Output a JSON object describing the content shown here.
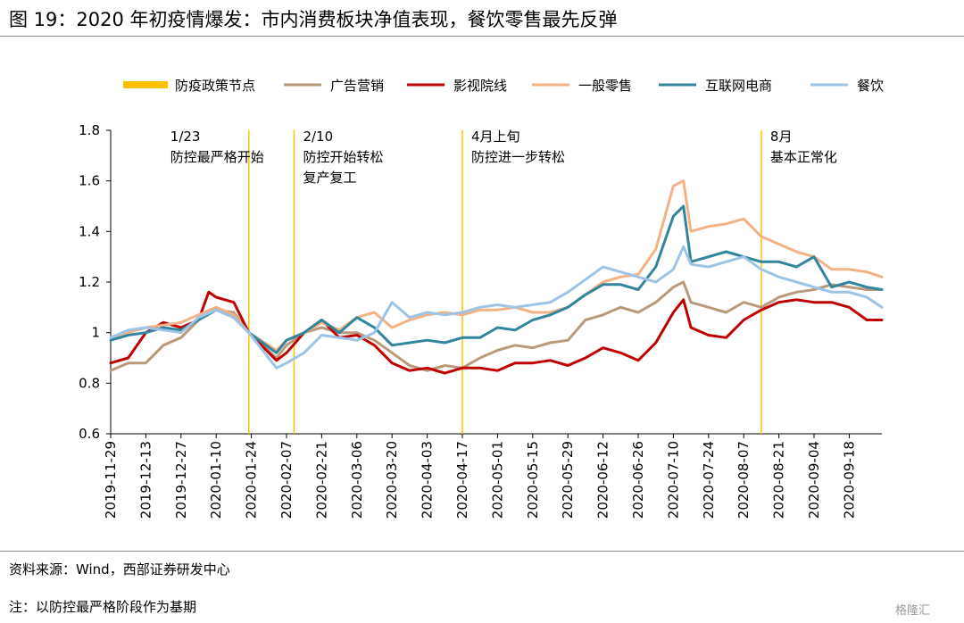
{
  "title": "图 19：2020 年初疫情爆发：市内消费板块净值表现，餐饮零售最先反弹",
  "source": "资料来源：Wind，西部证券研发中心",
  "note": "注：以防控最严格阶段作为基期",
  "watermark": "格隆汇",
  "chart_data": {
    "type": "line",
    "xlabel": "",
    "ylabel": "",
    "ylim": [
      0.6,
      1.8
    ],
    "yticks": [
      "0.6",
      "0.8",
      "1",
      "1.2",
      "1.4",
      "1.6",
      "1.8"
    ],
    "x_start": "2019-11-29",
    "x_end": "2020-10-01",
    "xticks": [
      "2019-11-29",
      "2019-12-13",
      "2019-12-27",
      "2020-01-10",
      "2020-01-24",
      "2020-02-07",
      "2020-02-21",
      "2020-03-06",
      "2020-03-20",
      "2020-04-03",
      "2020-04-17",
      "2020-05-01",
      "2020-05-15",
      "2020-05-29",
      "2020-06-12",
      "2020-06-26",
      "2020-07-10",
      "2020-07-24",
      "2020-08-07",
      "2020-08-21",
      "2020-09-04",
      "2020-09-18"
    ],
    "legend_position": "top",
    "grid": false,
    "policy_lines": {
      "name": "防疫政策节点",
      "color": "#FFC000",
      "dates": [
        "2020-01-23",
        "2020-02-10",
        "2020-04-17",
        "2020-08-14"
      ]
    },
    "annotations": [
      {
        "date": "2020-01-23",
        "lines": [
          "1/23",
          "防控最严格开始"
        ]
      },
      {
        "date": "2020-02-10",
        "lines": [
          "2/10",
          "防控开始转松",
          "复产复工"
        ]
      },
      {
        "date": "2020-04-17",
        "lines": [
          "4月上旬",
          "防控进一步转松"
        ]
      },
      {
        "date": "2020-08-14",
        "lines": [
          "8月",
          "基本正常化"
        ]
      }
    ],
    "series": [
      {
        "name": "广告营销",
        "color": "#B89A7A",
        "points": [
          [
            "2019-11-29",
            0.85
          ],
          [
            "2019-12-06",
            0.88
          ],
          [
            "2019-12-13",
            0.88
          ],
          [
            "2019-12-20",
            0.95
          ],
          [
            "2019-12-27",
            0.98
          ],
          [
            "2020-01-03",
            1.05
          ],
          [
            "2020-01-10",
            1.09
          ],
          [
            "2020-01-17",
            1.08
          ],
          [
            "2020-01-23",
            1.0
          ],
          [
            "2020-02-03",
            0.9
          ],
          [
            "2020-02-07",
            0.95
          ],
          [
            "2020-02-14",
            1.0
          ],
          [
            "2020-02-21",
            1.02
          ],
          [
            "2020-02-28",
            1.0
          ],
          [
            "2020-03-06",
            1.0
          ],
          [
            "2020-03-13",
            0.97
          ],
          [
            "2020-03-20",
            0.92
          ],
          [
            "2020-03-27",
            0.87
          ],
          [
            "2020-04-03",
            0.85
          ],
          [
            "2020-04-10",
            0.87
          ],
          [
            "2020-04-17",
            0.86
          ],
          [
            "2020-04-24",
            0.9
          ],
          [
            "2020-05-01",
            0.93
          ],
          [
            "2020-05-08",
            0.95
          ],
          [
            "2020-05-15",
            0.94
          ],
          [
            "2020-05-22",
            0.96
          ],
          [
            "2020-05-29",
            0.97
          ],
          [
            "2020-06-05",
            1.05
          ],
          [
            "2020-06-12",
            1.07
          ],
          [
            "2020-06-19",
            1.1
          ],
          [
            "2020-06-26",
            1.08
          ],
          [
            "2020-07-03",
            1.12
          ],
          [
            "2020-07-10",
            1.18
          ],
          [
            "2020-07-14",
            1.2
          ],
          [
            "2020-07-17",
            1.12
          ],
          [
            "2020-07-24",
            1.1
          ],
          [
            "2020-07-31",
            1.08
          ],
          [
            "2020-08-07",
            1.12
          ],
          [
            "2020-08-14",
            1.1
          ],
          [
            "2020-08-21",
            1.14
          ],
          [
            "2020-08-28",
            1.16
          ],
          [
            "2020-09-04",
            1.17
          ],
          [
            "2020-09-11",
            1.19
          ],
          [
            "2020-09-18",
            1.18
          ],
          [
            "2020-09-25",
            1.17
          ],
          [
            "2020-10-01",
            1.17
          ]
        ]
      },
      {
        "name": "影视院线",
        "color": "#C00000",
        "points": [
          [
            "2019-11-29",
            0.88
          ],
          [
            "2019-12-06",
            0.9
          ],
          [
            "2019-12-13",
            1.0
          ],
          [
            "2019-12-20",
            1.04
          ],
          [
            "2019-12-27",
            1.02
          ],
          [
            "2020-01-03",
            1.05
          ],
          [
            "2020-01-07",
            1.16
          ],
          [
            "2020-01-10",
            1.14
          ],
          [
            "2020-01-17",
            1.12
          ],
          [
            "2020-01-23",
            1.0
          ],
          [
            "2020-02-03",
            0.89
          ],
          [
            "2020-02-07",
            0.92
          ],
          [
            "2020-02-14",
            1.0
          ],
          [
            "2020-02-21",
            1.05
          ],
          [
            "2020-02-28",
            0.98
          ],
          [
            "2020-03-06",
            0.99
          ],
          [
            "2020-03-13",
            0.95
          ],
          [
            "2020-03-20",
            0.88
          ],
          [
            "2020-03-27",
            0.85
          ],
          [
            "2020-04-03",
            0.86
          ],
          [
            "2020-04-10",
            0.84
          ],
          [
            "2020-04-17",
            0.86
          ],
          [
            "2020-04-24",
            0.86
          ],
          [
            "2020-05-01",
            0.85
          ],
          [
            "2020-05-08",
            0.88
          ],
          [
            "2020-05-15",
            0.88
          ],
          [
            "2020-05-22",
            0.89
          ],
          [
            "2020-05-29",
            0.87
          ],
          [
            "2020-06-05",
            0.9
          ],
          [
            "2020-06-12",
            0.94
          ],
          [
            "2020-06-19",
            0.92
          ],
          [
            "2020-06-26",
            0.89
          ],
          [
            "2020-07-03",
            0.96
          ],
          [
            "2020-07-10",
            1.08
          ],
          [
            "2020-07-14",
            1.13
          ],
          [
            "2020-07-17",
            1.02
          ],
          [
            "2020-07-24",
            0.99
          ],
          [
            "2020-07-31",
            0.98
          ],
          [
            "2020-08-07",
            1.05
          ],
          [
            "2020-08-14",
            1.09
          ],
          [
            "2020-08-21",
            1.12
          ],
          [
            "2020-08-28",
            1.13
          ],
          [
            "2020-09-04",
            1.12
          ],
          [
            "2020-09-11",
            1.12
          ],
          [
            "2020-09-18",
            1.1
          ],
          [
            "2020-09-25",
            1.05
          ],
          [
            "2020-10-01",
            1.05
          ]
        ]
      },
      {
        "name": "一般零售",
        "color": "#F4B183",
        "points": [
          [
            "2019-11-29",
            0.98
          ],
          [
            "2019-12-06",
            1.0
          ],
          [
            "2019-12-13",
            1.02
          ],
          [
            "2019-12-20",
            1.03
          ],
          [
            "2019-12-27",
            1.04
          ],
          [
            "2020-01-03",
            1.07
          ],
          [
            "2020-01-10",
            1.1
          ],
          [
            "2020-01-17",
            1.07
          ],
          [
            "2020-01-23",
            1.0
          ],
          [
            "2020-02-03",
            0.93
          ],
          [
            "2020-02-07",
            0.97
          ],
          [
            "2020-02-14",
            1.0
          ],
          [
            "2020-02-21",
            1.04
          ],
          [
            "2020-02-28",
            1.01
          ],
          [
            "2020-03-06",
            1.06
          ],
          [
            "2020-03-13",
            1.08
          ],
          [
            "2020-03-20",
            1.02
          ],
          [
            "2020-03-27",
            1.05
          ],
          [
            "2020-04-03",
            1.07
          ],
          [
            "2020-04-10",
            1.08
          ],
          [
            "2020-04-17",
            1.07
          ],
          [
            "2020-04-24",
            1.09
          ],
          [
            "2020-05-01",
            1.09
          ],
          [
            "2020-05-08",
            1.1
          ],
          [
            "2020-05-15",
            1.08
          ],
          [
            "2020-05-22",
            1.08
          ],
          [
            "2020-05-29",
            1.1
          ],
          [
            "2020-06-05",
            1.15
          ],
          [
            "2020-06-12",
            1.2
          ],
          [
            "2020-06-19",
            1.22
          ],
          [
            "2020-06-26",
            1.23
          ],
          [
            "2020-07-03",
            1.33
          ],
          [
            "2020-07-10",
            1.58
          ],
          [
            "2020-07-14",
            1.6
          ],
          [
            "2020-07-17",
            1.4
          ],
          [
            "2020-07-24",
            1.42
          ],
          [
            "2020-07-31",
            1.43
          ],
          [
            "2020-08-07",
            1.45
          ],
          [
            "2020-08-14",
            1.38
          ],
          [
            "2020-08-21",
            1.35
          ],
          [
            "2020-08-28",
            1.32
          ],
          [
            "2020-09-04",
            1.3
          ],
          [
            "2020-09-11",
            1.25
          ],
          [
            "2020-09-18",
            1.25
          ],
          [
            "2020-09-25",
            1.24
          ],
          [
            "2020-10-01",
            1.22
          ]
        ]
      },
      {
        "name": "互联网电商",
        "color": "#31859C",
        "points": [
          [
            "2019-11-29",
            0.97
          ],
          [
            "2019-12-06",
            0.99
          ],
          [
            "2019-12-13",
            1.0
          ],
          [
            "2019-12-20",
            1.02
          ],
          [
            "2019-12-27",
            1.01
          ],
          [
            "2020-01-03",
            1.05
          ],
          [
            "2020-01-10",
            1.09
          ],
          [
            "2020-01-17",
            1.06
          ],
          [
            "2020-01-23",
            1.0
          ],
          [
            "2020-02-03",
            0.92
          ],
          [
            "2020-02-07",
            0.97
          ],
          [
            "2020-02-14",
            1.0
          ],
          [
            "2020-02-21",
            1.05
          ],
          [
            "2020-02-28",
            1.0
          ],
          [
            "2020-03-06",
            1.06
          ],
          [
            "2020-03-13",
            1.02
          ],
          [
            "2020-03-20",
            0.95
          ],
          [
            "2020-03-27",
            0.96
          ],
          [
            "2020-04-03",
            0.97
          ],
          [
            "2020-04-10",
            0.96
          ],
          [
            "2020-04-17",
            0.98
          ],
          [
            "2020-04-24",
            0.98
          ],
          [
            "2020-05-01",
            1.02
          ],
          [
            "2020-05-08",
            1.01
          ],
          [
            "2020-05-15",
            1.05
          ],
          [
            "2020-05-22",
            1.07
          ],
          [
            "2020-05-29",
            1.1
          ],
          [
            "2020-06-05",
            1.15
          ],
          [
            "2020-06-12",
            1.19
          ],
          [
            "2020-06-19",
            1.19
          ],
          [
            "2020-06-26",
            1.17
          ],
          [
            "2020-07-03",
            1.26
          ],
          [
            "2020-07-10",
            1.46
          ],
          [
            "2020-07-14",
            1.5
          ],
          [
            "2020-07-17",
            1.28
          ],
          [
            "2020-07-24",
            1.3
          ],
          [
            "2020-07-31",
            1.32
          ],
          [
            "2020-08-07",
            1.3
          ],
          [
            "2020-08-14",
            1.28
          ],
          [
            "2020-08-21",
            1.28
          ],
          [
            "2020-08-28",
            1.26
          ],
          [
            "2020-09-04",
            1.3
          ],
          [
            "2020-09-11",
            1.18
          ],
          [
            "2020-09-18",
            1.2
          ],
          [
            "2020-09-25",
            1.18
          ],
          [
            "2020-10-01",
            1.17
          ]
        ]
      },
      {
        "name": "餐饮",
        "color": "#9DC3E6",
        "points": [
          [
            "2019-11-29",
            0.98
          ],
          [
            "2019-12-06",
            1.01
          ],
          [
            "2019-12-13",
            1.02
          ],
          [
            "2019-12-20",
            1.01
          ],
          [
            "2019-12-27",
            1.0
          ],
          [
            "2020-01-03",
            1.06
          ],
          [
            "2020-01-10",
            1.09
          ],
          [
            "2020-01-17",
            1.06
          ],
          [
            "2020-01-23",
            1.0
          ],
          [
            "2020-02-03",
            0.86
          ],
          [
            "2020-02-07",
            0.88
          ],
          [
            "2020-02-14",
            0.92
          ],
          [
            "2020-02-21",
            0.99
          ],
          [
            "2020-02-28",
            0.98
          ],
          [
            "2020-03-06",
            0.97
          ],
          [
            "2020-03-13",
            1.0
          ],
          [
            "2020-03-20",
            1.12
          ],
          [
            "2020-03-27",
            1.06
          ],
          [
            "2020-04-03",
            1.08
          ],
          [
            "2020-04-10",
            1.07
          ],
          [
            "2020-04-17",
            1.08
          ],
          [
            "2020-04-24",
            1.1
          ],
          [
            "2020-05-01",
            1.11
          ],
          [
            "2020-05-08",
            1.1
          ],
          [
            "2020-05-15",
            1.11
          ],
          [
            "2020-05-22",
            1.12
          ],
          [
            "2020-05-29",
            1.16
          ],
          [
            "2020-06-05",
            1.21
          ],
          [
            "2020-06-12",
            1.26
          ],
          [
            "2020-06-19",
            1.24
          ],
          [
            "2020-06-26",
            1.22
          ],
          [
            "2020-07-03",
            1.2
          ],
          [
            "2020-07-10",
            1.25
          ],
          [
            "2020-07-14",
            1.34
          ],
          [
            "2020-07-17",
            1.27
          ],
          [
            "2020-07-24",
            1.26
          ],
          [
            "2020-07-31",
            1.28
          ],
          [
            "2020-08-07",
            1.3
          ],
          [
            "2020-08-14",
            1.25
          ],
          [
            "2020-08-21",
            1.22
          ],
          [
            "2020-08-28",
            1.2
          ],
          [
            "2020-09-04",
            1.18
          ],
          [
            "2020-09-11",
            1.16
          ],
          [
            "2020-09-18",
            1.16
          ],
          [
            "2020-09-25",
            1.14
          ],
          [
            "2020-10-01",
            1.1
          ]
        ]
      }
    ]
  }
}
